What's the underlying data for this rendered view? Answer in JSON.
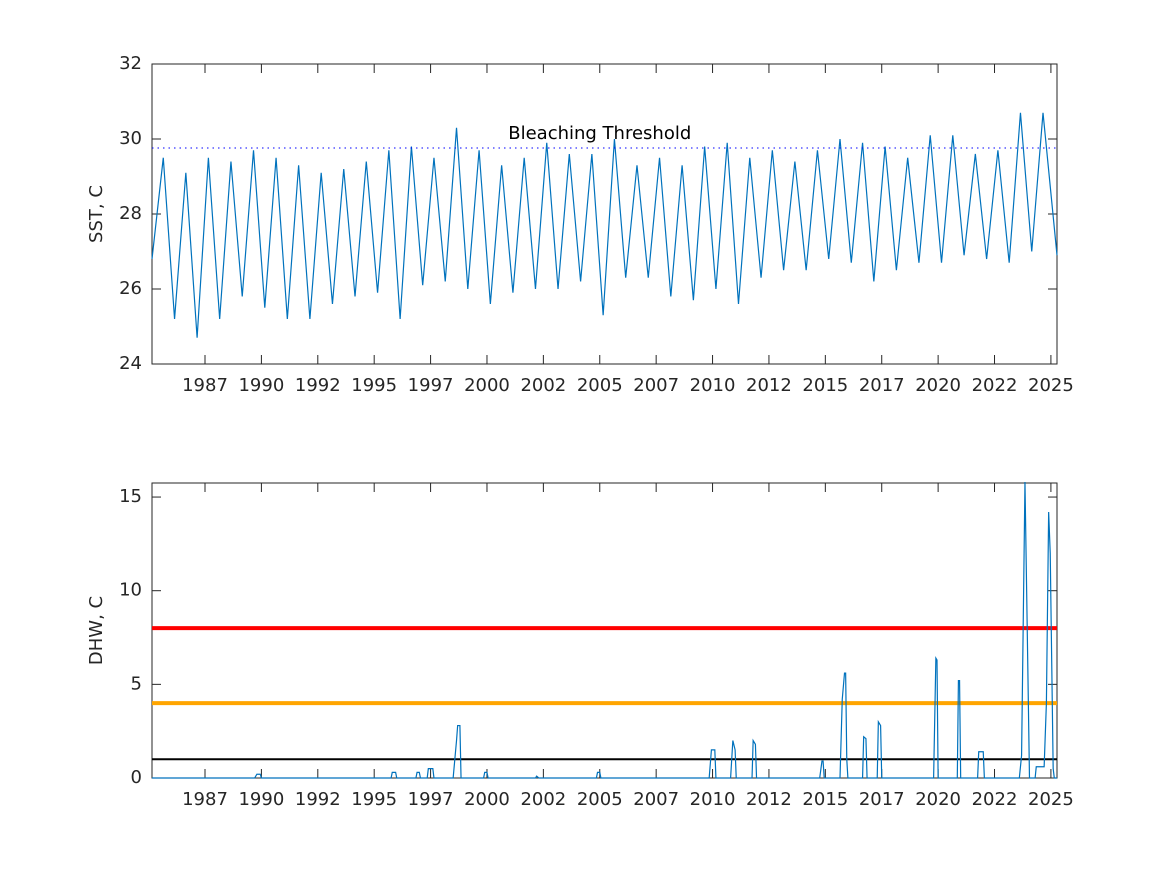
{
  "chart_data": [
    {
      "type": "line",
      "ylabel": "SST, C",
      "x": [
        1985.15,
        1985.65,
        1986.15,
        1986.65,
        1987.15,
        1987.65,
        1988.15,
        1988.65,
        1989.15,
        1989.65,
        1990.15,
        1990.65,
        1991.15,
        1991.65,
        1992.15,
        1992.65,
        1993.15,
        1993.65,
        1994.15,
        1994.65,
        1995.15,
        1995.65,
        1996.15,
        1996.65,
        1997.15,
        1997.65,
        1998.15,
        1998.65,
        1999.15,
        1999.65,
        2000.15,
        2000.65,
        2001.15,
        2001.65,
        2002.15,
        2002.65,
        2003.15,
        2003.65,
        2004.15,
        2004.65,
        2005.15,
        2005.65,
        2006.15,
        2006.65,
        2007.15,
        2007.65,
        2008.15,
        2008.65,
        2009.15,
        2009.65,
        2010.15,
        2010.65,
        2011.15,
        2011.65,
        2012.15,
        2012.65,
        2013.15,
        2013.65,
        2014.15,
        2014.65,
        2015.15,
        2015.65,
        2016.15,
        2016.65,
        2017.15,
        2017.65,
        2018.15,
        2018.65,
        2019.15,
        2019.65,
        2020.15,
        2020.65,
        2021.15,
        2021.65,
        2022.15,
        2022.65,
        2023.15,
        2023.65,
        2024.15,
        2024.65,
        2025.27
      ],
      "series": [
        {
          "color": "#0072bd",
          "values": [
            26.8,
            29.5,
            25.2,
            29.1,
            24.7,
            29.5,
            25.2,
            29.4,
            25.8,
            29.7,
            25.5,
            29.5,
            25.2,
            29.3,
            25.2,
            29.1,
            25.6,
            29.2,
            25.8,
            29.4,
            25.9,
            29.7,
            25.2,
            29.8,
            26.1,
            29.5,
            26.2,
            30.3,
            26.0,
            29.7,
            25.6,
            29.3,
            25.9,
            29.5,
            26.0,
            29.9,
            26.0,
            29.6,
            26.2,
            29.6,
            25.3,
            30.0,
            26.3,
            29.3,
            26.3,
            29.5,
            25.8,
            29.3,
            25.7,
            29.8,
            26.0,
            29.9,
            25.6,
            29.5,
            26.3,
            29.7,
            26.5,
            29.4,
            26.5,
            29.7,
            26.8,
            30.0,
            26.7,
            29.9,
            26.2,
            29.8,
            26.5,
            29.5,
            26.7,
            30.1,
            26.7,
            30.1,
            26.9,
            29.6,
            26.8,
            29.7,
            26.7,
            30.7,
            27.0,
            30.7,
            26.9
          ]
        }
      ],
      "threshold": 29.76,
      "threshold_color": "#0000ff",
      "annotation": "Bleaching Threshold",
      "annotation_x": 2005,
      "xlim": [
        1985.15,
        2025.27
      ],
      "xticks": [
        {
          "value": 1987.5,
          "label": "1987"
        },
        1990,
        {
          "value": 1992.5,
          "label": "1992"
        },
        1995,
        {
          "value": 1997.5,
          "label": "1997"
        },
        2000,
        {
          "value": 2002.5,
          "label": "2002"
        },
        2005,
        {
          "value": 2007.5,
          "label": "2007"
        },
        2010,
        {
          "value": 2012.5,
          "label": "2012"
        },
        2015,
        {
          "value": 2017.5,
          "label": "2017"
        },
        2020,
        {
          "value": 2022.5,
          "label": "2022"
        },
        2025
      ],
      "ylim": [
        24,
        32
      ],
      "yticks": [
        24,
        26,
        28,
        30,
        32
      ]
    },
    {
      "type": "line",
      "ylabel": "DHW, C",
      "x": [
        1985.15,
        1989.7,
        1989.8,
        1989.95,
        1990.0,
        1995.75,
        1995.8,
        1995.95,
        1996.0,
        1996.85,
        1996.9,
        1997.0,
        1997.05,
        1997.35,
        1997.4,
        1997.6,
        1997.65,
        1998.5,
        1998.65,
        1998.7,
        1998.8,
        1998.85,
        1999.85,
        1999.9,
        2000.0,
        2000.05,
        2002.15,
        2002.2,
        2002.3,
        2004.85,
        2004.9,
        2005.0,
        2005.05,
        2009.85,
        2009.95,
        2010.1,
        2010.15,
        2010.8,
        2010.9,
        2011.0,
        2011.05,
        2011.75,
        2011.8,
        2011.9,
        2011.95,
        2014.75,
        2014.85,
        2014.9,
        2014.95,
        2015.65,
        2015.75,
        2015.85,
        2015.9,
        2015.95,
        2016.0,
        2016.65,
        2016.7,
        2016.8,
        2016.85,
        2017.3,
        2017.35,
        2017.45,
        2017.5,
        2019.8,
        2019.9,
        2019.95,
        2020.0,
        2020.85,
        2020.9,
        2020.95,
        2021.0,
        2021.75,
        2021.8,
        2022.0,
        2022.05,
        2023.6,
        2023.7,
        2023.85,
        2023.95,
        2024.05,
        2024.3,
        2024.35,
        2024.7,
        2024.8,
        2024.9,
        2024.97,
        2025.1,
        2025.15,
        2025.27
      ],
      "series": [
        {
          "color": "#0072bd",
          "values": [
            0,
            0,
            0.2,
            0.2,
            0,
            0,
            0.3,
            0.3,
            0,
            0,
            0.3,
            0.3,
            0,
            0,
            0.5,
            0.5,
            0,
            0,
            2.0,
            2.8,
            2.8,
            0,
            0,
            0.3,
            0.3,
            0,
            0,
            0.1,
            0,
            0,
            0.3,
            0.3,
            0,
            0,
            1.5,
            1.5,
            0,
            0,
            2.0,
            1.5,
            0,
            0,
            2.0,
            1.8,
            0,
            0,
            0.9,
            0.9,
            0,
            0,
            4.2,
            5.6,
            5.6,
            1.0,
            0,
            0,
            2.2,
            2.1,
            0,
            0,
            3.0,
            2.8,
            0,
            0,
            6.4,
            6.3,
            0,
            0,
            5.2,
            5.2,
            0,
            0,
            1.4,
            1.4,
            0,
            0,
            1.2,
            15.8,
            8,
            0,
            0,
            0.6,
            0.6,
            4,
            14.2,
            12,
            0.5,
            0,
            0
          ]
        }
      ],
      "hlines": [
        {
          "value": 1,
          "color": "#000000"
        },
        {
          "value": 4,
          "color": "#ffa500"
        },
        {
          "value": 8,
          "color": "#ff0000"
        }
      ],
      "xlim": [
        1985.15,
        2025.27
      ],
      "xticks": [
        {
          "value": 1987.5,
          "label": "1987"
        },
        1990,
        {
          "value": 1992.5,
          "label": "1992"
        },
        1995,
        {
          "value": 1997.5,
          "label": "1997"
        },
        2000,
        {
          "value": 2002.5,
          "label": "2002"
        },
        2005,
        {
          "value": 2007.5,
          "label": "2007"
        },
        2010,
        {
          "value": 2012.5,
          "label": "2012"
        },
        2015,
        {
          "value": 2017.5,
          "label": "2017"
        },
        2020,
        {
          "value": 2022.5,
          "label": "2022"
        },
        2025
      ],
      "ylim": [
        0,
        15.75
      ],
      "yticks": [
        0,
        5,
        10,
        15
      ]
    }
  ]
}
